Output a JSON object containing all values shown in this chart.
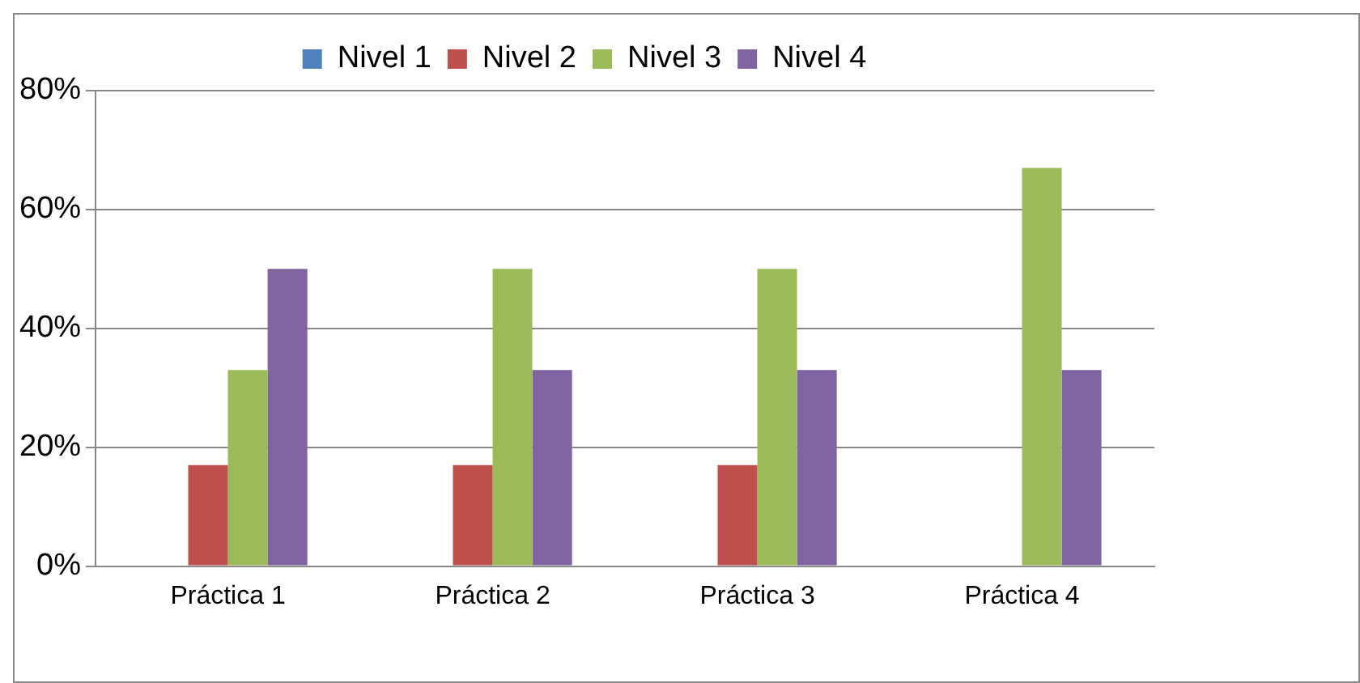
{
  "chart_data": {
    "type": "bar",
    "categories": [
      "Práctica 1",
      "Práctica 2",
      "Práctica 3",
      "Práctica 4"
    ],
    "series": [
      {
        "name": "Nivel 1",
        "color": "#4f81bd",
        "values": [
          0,
          0,
          0,
          0
        ]
      },
      {
        "name": "Nivel 2",
        "color": "#c0504d",
        "values": [
          17,
          17,
          17,
          0
        ]
      },
      {
        "name": "Nivel 3",
        "color": "#9bbb59",
        "values": [
          33,
          50,
          50,
          67
        ]
      },
      {
        "name": "Nivel 4",
        "color": "#8064a2",
        "values": [
          50,
          33,
          33,
          33
        ]
      }
    ],
    "ylim": [
      0,
      80
    ],
    "yticks": [
      {
        "value": 0,
        "label": "0%"
      },
      {
        "value": 20,
        "label": "20%"
      },
      {
        "value": 40,
        "label": "40%"
      },
      {
        "value": 60,
        "label": "60%"
      },
      {
        "value": 80,
        "label": "80%"
      }
    ],
    "grid": "y",
    "legend": "top"
  }
}
